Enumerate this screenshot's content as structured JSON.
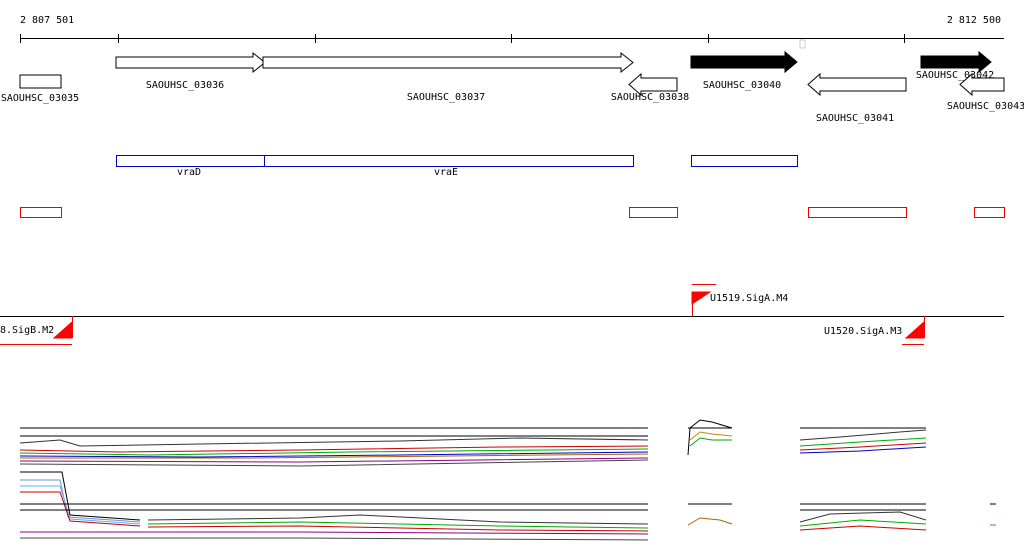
{
  "ruler": {
    "start": "2 807 501",
    "end": "2 812 500"
  },
  "genes": [
    "SAOUHSC_03035",
    "SAOUHSC_03036",
    "SAOUHSC_03037",
    "SAOUHSC_03038",
    "SAOUHSC_03040",
    "SAOUHSC_03041",
    "SAOUHSC_03042",
    "SAOUHSC_03043"
  ],
  "operons": [
    "vraD",
    "vraE"
  ],
  "promoters": [
    "U1519.SigA.M4",
    "8.SigB.M2",
    "U1520.SigA.M3"
  ]
}
